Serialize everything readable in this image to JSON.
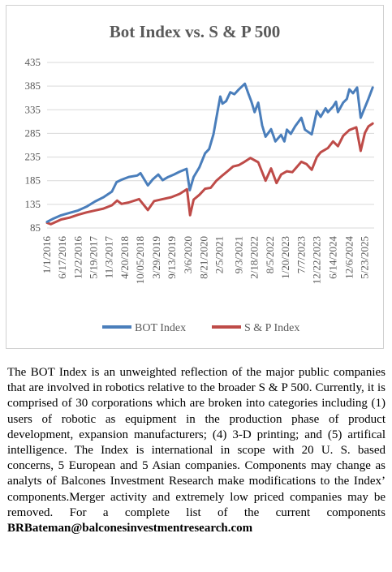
{
  "chart_data": {
    "type": "line",
    "title": "Bot Index vs. S & P 500",
    "xlabel": "",
    "ylabel": "",
    "ylim": [
      85,
      435
    ],
    "yticks": [
      85,
      135,
      185,
      235,
      285,
      335,
      385,
      435
    ],
    "x_tick_labels": [
      "1/1/2016",
      "6/17/2016",
      "12/2/2016",
      "5/19/2017",
      "11/3/2017",
      "4/20/2018",
      "10/05/2018",
      "3/29/2019",
      "9/13/2019",
      "3/6/2020",
      "8/21/2020",
      "2/5/2021",
      "9/3/2021",
      "2/18/2022",
      "8/5/2022",
      "1/20/2023",
      "7/7/2023",
      "12/22/2023",
      "6/14/2024",
      "12/6/2024",
      "5/23/2025"
    ],
    "legend": "bottom",
    "grid": "horizontal",
    "series": [
      {
        "name": "BOT Index",
        "color": "#4a7ebb",
        "x": [
          "2016-01-01",
          "2016-03-01",
          "2016-06-01",
          "2016-09-01",
          "2016-12-01",
          "2017-03-01",
          "2017-06-01",
          "2017-09-01",
          "2017-12-01",
          "2018-01-20",
          "2018-03-15",
          "2018-06-01",
          "2018-09-01",
          "2018-10-05",
          "2018-12-24",
          "2019-02-15",
          "2019-04-15",
          "2019-06-01",
          "2019-08-01",
          "2019-10-01",
          "2019-12-01",
          "2020-02-15",
          "2020-03-20",
          "2020-05-01",
          "2020-07-01",
          "2020-09-01",
          "2020-10-15",
          "2020-12-01",
          "2021-01-15",
          "2021-02-12",
          "2021-03-08",
          "2021-04-15",
          "2021-06-01",
          "2021-07-15",
          "2021-09-01",
          "2021-11-05",
          "2021-12-15",
          "2022-01-15",
          "2022-02-18",
          "2022-03-29",
          "2022-05-10",
          "2022-06-16",
          "2022-08-15",
          "2022-09-30",
          "2022-11-30",
          "2023-01-05",
          "2023-02-01",
          "2023-03-15",
          "2023-05-01",
          "2023-07-07",
          "2023-08-15",
          "2023-10-27",
          "2023-12-22",
          "2024-02-01",
          "2024-03-25",
          "2024-04-19",
          "2024-06-14",
          "2024-07-15",
          "2024-08-05",
          "2024-09-30",
          "2024-11-10",
          "2024-12-06",
          "2025-01-15",
          "2025-02-28",
          "2025-04-08",
          "2025-05-23",
          "2025-06-30",
          "2025-08-15"
        ],
        "y": [
          98,
          104,
          112,
          117,
          122,
          130,
          141,
          150,
          162,
          182,
          187,
          193,
          196,
          201,
          175,
          188,
          198,
          186,
          193,
          198,
          204,
          210,
          165,
          193,
          213,
          243,
          252,
          283,
          333,
          363,
          348,
          353,
          372,
          368,
          378,
          390,
          368,
          352,
          330,
          350,
          302,
          278,
          294,
          268,
          282,
          268,
          293,
          284,
          300,
          318,
          293,
          283,
          332,
          320,
          338,
          330,
          342,
          352,
          330,
          350,
          358,
          378,
          370,
          382,
          318,
          340,
          358,
          382
        ]
      },
      {
        "name": "S & P Index",
        "color": "#be4b48",
        "x": [
          "2016-01-01",
          "2016-02-11",
          "2016-06-01",
          "2016-09-01",
          "2016-12-01",
          "2017-03-01",
          "2017-06-01",
          "2017-09-01",
          "2017-12-01",
          "2018-01-26",
          "2018-03-15",
          "2018-06-01",
          "2018-09-20",
          "2018-12-24",
          "2019-03-01",
          "2019-06-01",
          "2019-09-01",
          "2019-12-01",
          "2020-02-19",
          "2020-03-23",
          "2020-05-01",
          "2020-07-01",
          "2020-09-01",
          "2020-11-01",
          "2021-01-01",
          "2021-03-01",
          "2021-05-01",
          "2021-07-01",
          "2021-09-01",
          "2021-11-01",
          "2022-01-03",
          "2022-03-29",
          "2022-06-16",
          "2022-08-15",
          "2022-10-12",
          "2022-12-01",
          "2023-02-01",
          "2023-04-01",
          "2023-07-07",
          "2023-09-01",
          "2023-10-27",
          "2023-12-22",
          "2024-02-01",
          "2024-04-19",
          "2024-06-14",
          "2024-08-05",
          "2024-10-01",
          "2024-12-06",
          "2025-02-19",
          "2025-04-08",
          "2025-05-23",
          "2025-07-01",
          "2025-08-15"
        ],
        "y": [
          96,
          93,
          103,
          107,
          113,
          118,
          122,
          126,
          133,
          143,
          136,
          139,
          146,
          123,
          142,
          146,
          150,
          157,
          167,
          112,
          145,
          155,
          168,
          170,
          185,
          195,
          205,
          215,
          218,
          225,
          233,
          224,
          185,
          211,
          180,
          198,
          205,
          203,
          225,
          220,
          208,
          235,
          245,
          254,
          268,
          258,
          280,
          292,
          298,
          248,
          286,
          300,
          306
        ]
      }
    ]
  },
  "description": {
    "text": "The BOT Index is an unweighted reflection of the major public companies that are involved in robotics relative to the broader S & P 500. Currently, it is comprised of 30 corporations which are broken into categories including (1) users of robotic as equipment in the production phase of product development, expansion manufacturers; (4) 3-D printing; and (5) artifical intelligence. The Index is international in scope with 20 U. S. based concerns, 5 European and 5 Asian companies. Components may change as analyts of Balcones Investment Research make modifications to the Index’ components.Merger activity and extremely low priced companies may be removed.  For a  complete list of the current components ",
    "email": "BRBateman@balconesinvestmentresearch.com"
  }
}
